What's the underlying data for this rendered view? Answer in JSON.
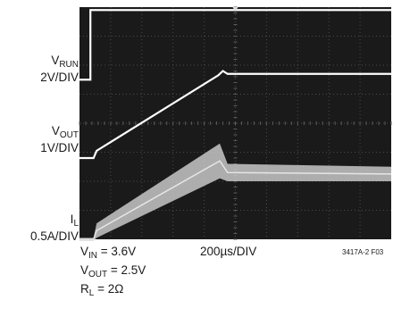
{
  "chart_data": {
    "type": "line",
    "background": "#1a1a1a",
    "grid": true,
    "time_per_div_label": "200µs/DIV",
    "channels": [
      {
        "name_main": "V",
        "name_sub": "RUN",
        "scale_label": "2V/DIV",
        "color": "#ffffff",
        "x_div": [
          0,
          0.35,
          0.35,
          10
        ],
        "y_div_from_top": [
          2.5,
          2.5,
          0.1,
          0.1
        ]
      },
      {
        "name_main": "V",
        "name_sub": "OUT",
        "scale_label": "1V/DIV",
        "color": "#ffffff",
        "x_div": [
          0,
          0.45,
          0.55,
          4.45,
          4.6,
          4.75,
          10
        ],
        "y_div_from_top": [
          5.2,
          5.2,
          4.95,
          2.35,
          2.2,
          2.3,
          2.3
        ]
      },
      {
        "name_main": "I",
        "name_sub": "L",
        "scale_label": "0.5A/DIV",
        "color": "#c8c8c8",
        "x_div": [
          0,
          0.45,
          0.55,
          4.5,
          4.75,
          10
        ],
        "y_div_from_top": [
          8.0,
          8.0,
          7.7,
          5.3,
          5.7,
          5.75
        ],
        "ripple_div": [
          0.25,
          0.6,
          0.3,
          0.25
        ]
      }
    ],
    "conditions": [
      {
        "main": "V",
        "sub": "IN",
        "rest": " = 3.6V"
      },
      {
        "main": "V",
        "sub": "OUT",
        "rest": " = 2.5V"
      },
      {
        "main": "R",
        "sub": "L",
        "rest": " = 2Ω"
      }
    ],
    "figure_code": "3417A-2 F03"
  }
}
